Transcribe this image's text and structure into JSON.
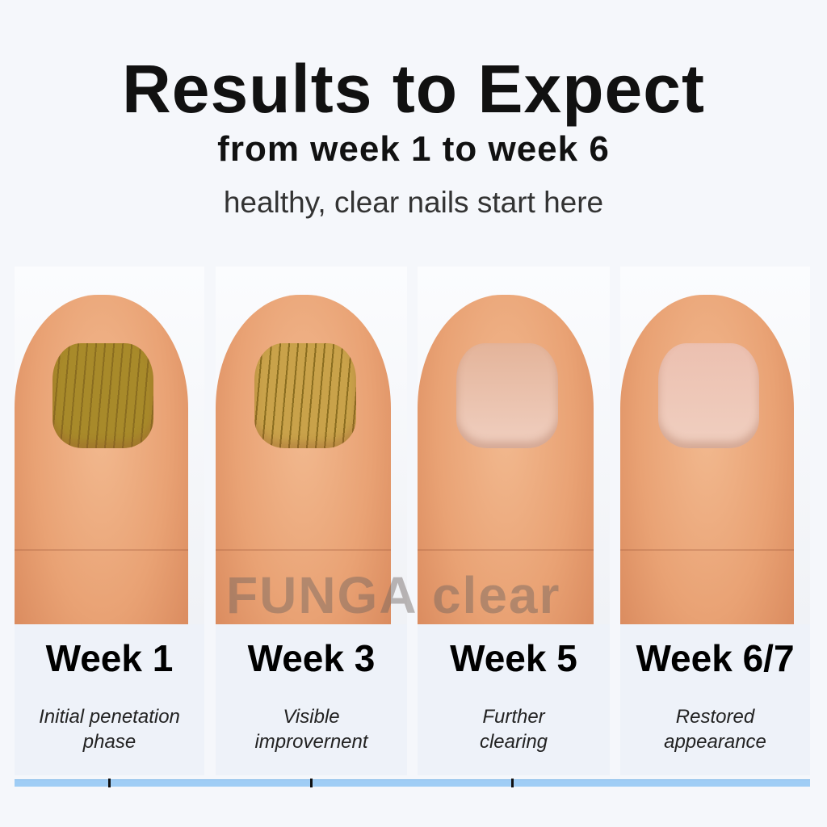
{
  "header": {
    "title": "Results to Expect",
    "subtitle": "from week 1 to week 6",
    "tagline": "healthy, clear nails start here"
  },
  "watermark": "FUNGA clear",
  "stages": [
    {
      "label": "Week 1",
      "desc1": "Initial penetation",
      "desc2": "phase",
      "nail_color": "#a88a2a"
    },
    {
      "label": "Week 3",
      "desc1": "Visible",
      "desc2": "improvernent",
      "nail_color": "#c9a24a"
    },
    {
      "label": "Week 5",
      "desc1": "Further",
      "desc2": "clearing",
      "nail_color": "#e4b49a"
    },
    {
      "label": "Week 6/7",
      "desc1": "Restored",
      "desc2": "appearance",
      "nail_color": "#ecc0b0"
    }
  ],
  "colors": {
    "timeline": "#9fcdf5",
    "background": "#f5f7fb"
  }
}
